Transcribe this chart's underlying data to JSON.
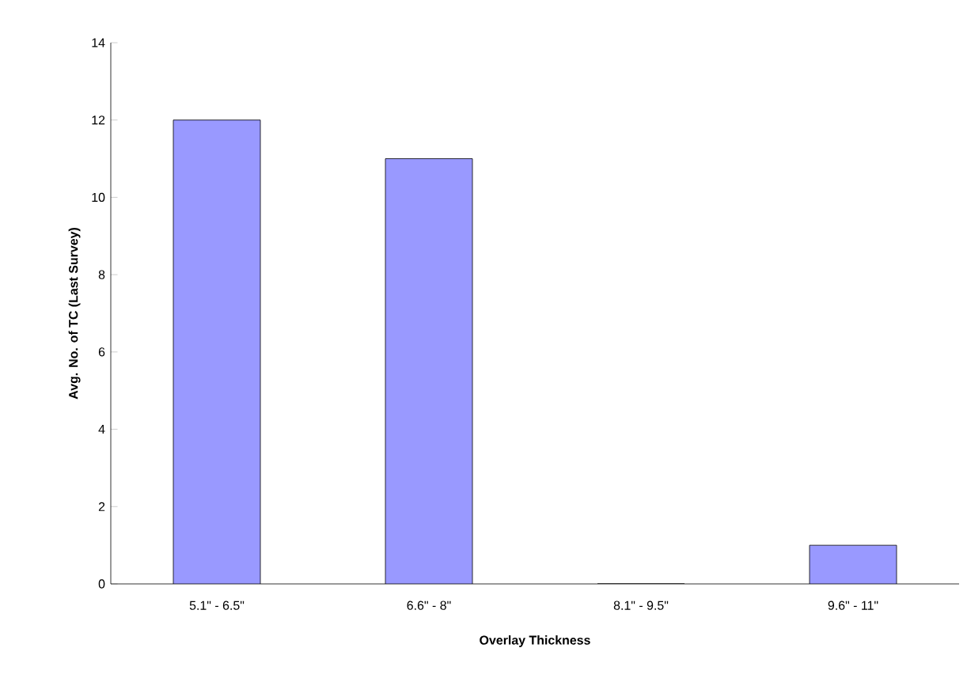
{
  "chart_data": {
    "type": "bar",
    "categories": [
      "5.1\" - 6.5\"",
      "6.6\" - 8\"",
      "8.1\" - 9.5\"",
      "9.6\" - 11\""
    ],
    "values": [
      12,
      11,
      0,
      1
    ],
    "color": "#9999ff",
    "xlabel": "Overlay Thickness",
    "ylabel": "Avg. No. of TC (Last Survey)",
    "ylim": [
      0,
      14
    ],
    "yticks": [
      0,
      2,
      4,
      6,
      8,
      10,
      12,
      14
    ],
    "grid": false
  }
}
